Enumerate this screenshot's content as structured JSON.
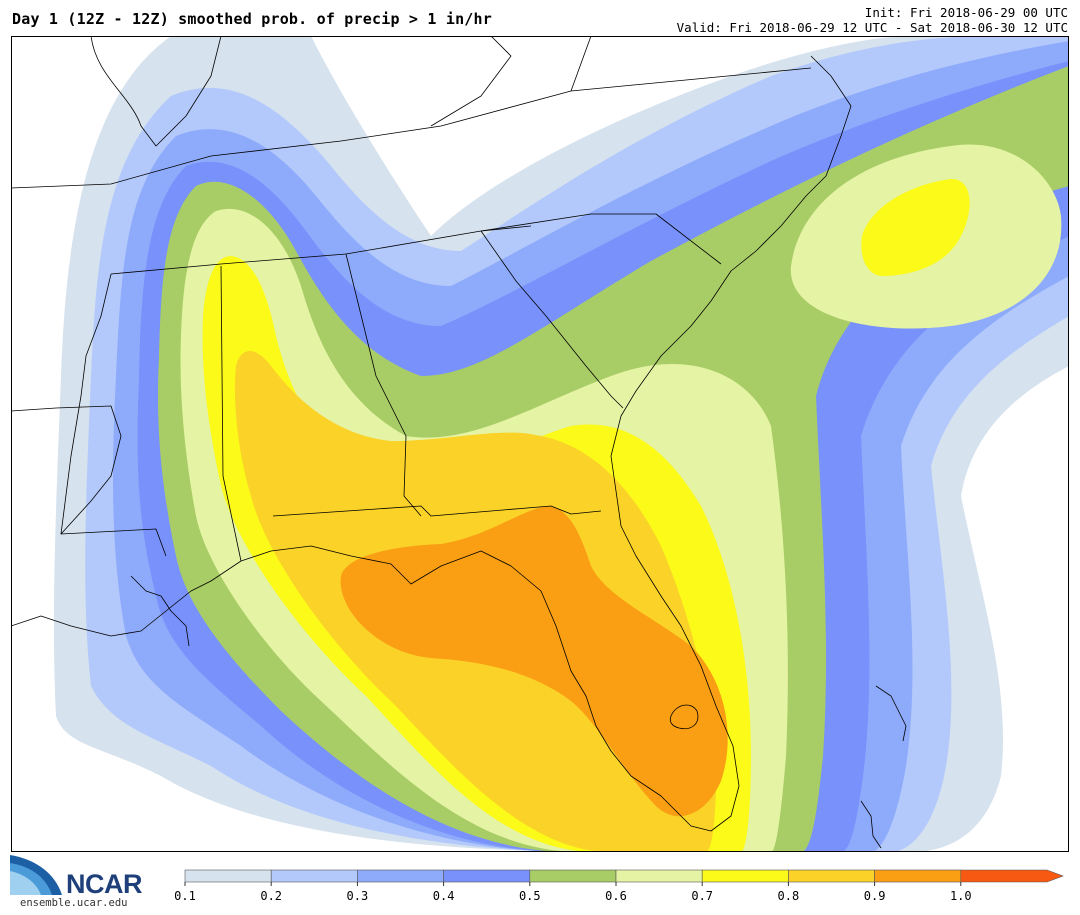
{
  "header": {
    "title": "Day 1 (12Z - 12Z) smoothed prob. of precip > 1 in/hr",
    "init": "Init: Fri 2018-06-29 00 UTC",
    "valid": "Valid: Fri 2018-06-29 12 UTC - Sat 2018-06-30 12 UTC"
  },
  "logo": {
    "name": "NCAR",
    "site": "ensemble.ucar.edu"
  },
  "colorbar": {
    "ticks": [
      "0.1",
      "0.2",
      "0.3",
      "0.4",
      "0.5",
      "0.6",
      "0.7",
      "0.8",
      "0.9",
      "1.0"
    ],
    "colors": [
      "#d6e2ee",
      "#b3c9fb",
      "#8eabfb",
      "#7891fb",
      "#a9cd66",
      "#e5f3a4",
      "#fbfa19",
      "#fbd227",
      "#fa9f14",
      "#f85912"
    ]
  },
  "map": {
    "region": "southeastern-united-states",
    "field": "probability",
    "levels": [
      0.1,
      0.2,
      0.3,
      0.4,
      0.5,
      0.6,
      0.7,
      0.8,
      0.9
    ],
    "maxima": [
      {
        "area": "florida-peninsula-and-panhandle",
        "max_level": 0.9
      },
      {
        "area": "offshore-carolinas",
        "max_level": 0.7
      }
    ]
  }
}
